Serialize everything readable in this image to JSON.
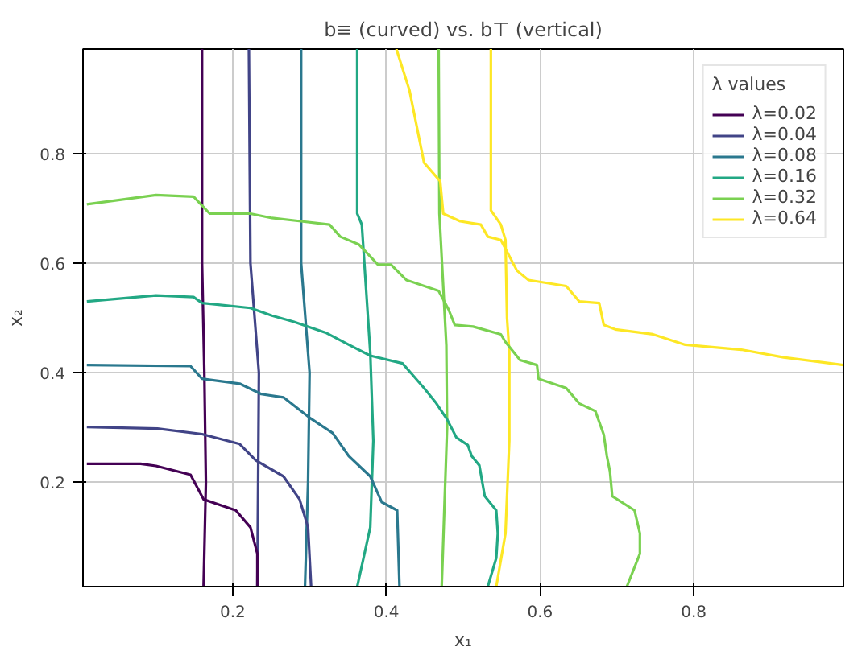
{
  "chart_data": {
    "type": "line",
    "title": "b≡ (curved) vs. b⊤ (vertical)",
    "xlabel": "x₁",
    "ylabel": "x₂",
    "legend_title": "λ values",
    "xlim": [
      0.005,
      0.995
    ],
    "ylim": [
      0.01,
      0.99
    ],
    "xticks": [
      0.2,
      0.4,
      0.6,
      0.8
    ],
    "yticks": [
      0.2,
      0.4,
      0.6,
      0.8
    ],
    "grid": true,
    "legend": "top right",
    "series": [
      {
        "name": "λ=0.02",
        "color": "#440154",
        "x": [
          0.16,
          0.16,
          0.163,
          0.165,
          0.162
        ],
        "values": [
          0.99,
          0.6,
          0.4,
          0.2,
          0.01
        ]
      },
      {
        "name": "λ=0.04",
        "color": "#414487",
        "x": [
          0.221,
          0.223,
          0.234,
          0.233,
          0.232
        ],
        "values": [
          0.99,
          0.6,
          0.4,
          0.2,
          0.01
        ]
      },
      {
        "name": "λ=0.08",
        "color": "#2a788e",
        "x": [
          0.289,
          0.289,
          0.3,
          0.298,
          0.294
        ],
        "values": [
          0.99,
          0.6,
          0.4,
          0.2,
          0.01
        ]
      },
      {
        "name": "λ=0.16",
        "color": "#22a884",
        "x": [
          0.362,
          0.362,
          0.368,
          0.379,
          0.383,
          0.379,
          0.362
        ],
        "values": [
          0.99,
          0.69,
          0.67,
          0.437,
          0.276,
          0.118,
          0.01
        ]
      },
      {
        "name": "λ=0.32",
        "color": "#7ad151",
        "x": [
          0.468,
          0.469,
          0.478,
          0.479,
          0.472
        ],
        "values": [
          0.99,
          0.69,
          0.45,
          0.3,
          0.01
        ]
      },
      {
        "name": "λ=0.64",
        "color": "#fde725",
        "x": [
          0.536,
          0.536,
          0.549,
          0.555,
          0.557,
          0.56,
          0.56,
          0.555,
          0.543
        ],
        "values": [
          0.99,
          0.696,
          0.67,
          0.642,
          0.5,
          0.437,
          0.276,
          0.107,
          0.01
        ]
      },
      {
        "color": "#440154",
        "x": [
          0.01,
          0.08,
          0.1,
          0.145,
          0.162,
          0.204,
          0.223,
          0.232,
          0.232
        ],
        "values": [
          0.234,
          0.234,
          0.23,
          0.214,
          0.169,
          0.149,
          0.118,
          0.07,
          0.01
        ]
      },
      {
        "color": "#414487",
        "x": [
          0.01,
          0.102,
          0.16,
          0.209,
          0.23,
          0.266,
          0.287,
          0.298,
          0.302
        ],
        "values": [
          0.301,
          0.298,
          0.288,
          0.27,
          0.24,
          0.211,
          0.169,
          0.118,
          0.01
        ]
      },
      {
        "color": "#2a788e",
        "x": [
          0.01,
          0.145,
          0.16,
          0.209,
          0.237,
          0.266,
          0.3,
          0.33,
          0.351,
          0.379,
          0.394,
          0.414,
          0.417
        ],
        "values": [
          0.414,
          0.412,
          0.389,
          0.38,
          0.361,
          0.355,
          0.318,
          0.29,
          0.248,
          0.211,
          0.164,
          0.149,
          0.01
        ]
      },
      {
        "color": "#22a884",
        "x": [
          0.01,
          0.1,
          0.149,
          0.16,
          0.223,
          0.251,
          0.279,
          0.321,
          0.351,
          0.379,
          0.421,
          0.449,
          0.464,
          0.479,
          0.491,
          0.506,
          0.511,
          0.521,
          0.528,
          0.543,
          0.545,
          0.543,
          0.532
        ],
        "values": [
          0.53,
          0.541,
          0.538,
          0.527,
          0.518,
          0.504,
          0.493,
          0.473,
          0.451,
          0.431,
          0.417,
          0.372,
          0.346,
          0.315,
          0.282,
          0.268,
          0.248,
          0.231,
          0.175,
          0.149,
          0.107,
          0.062,
          0.01
        ]
      },
      {
        "color": "#7ad151",
        "x": [
          0.01,
          0.1,
          0.149,
          0.17,
          0.223,
          0.251,
          0.289,
          0.326,
          0.34,
          0.364,
          0.389,
          0.406,
          0.426,
          0.468,
          0.481,
          0.489,
          0.513,
          0.549,
          0.555,
          0.574,
          0.596,
          0.598,
          0.634,
          0.651,
          0.672,
          0.683,
          0.687,
          0.691,
          0.694,
          0.723,
          0.73,
          0.73,
          0.713
        ],
        "values": [
          0.707,
          0.724,
          0.721,
          0.69,
          0.69,
          0.682,
          0.676,
          0.67,
          0.648,
          0.634,
          0.597,
          0.597,
          0.569,
          0.549,
          0.515,
          0.487,
          0.484,
          0.47,
          0.456,
          0.423,
          0.414,
          0.389,
          0.372,
          0.344,
          0.33,
          0.287,
          0.248,
          0.22,
          0.175,
          0.149,
          0.107,
          0.07,
          0.01
        ]
      },
      {
        "color": "#fde725",
        "x": [
          0.413,
          0.43,
          0.449,
          0.47,
          0.474,
          0.496,
          0.523,
          0.532,
          0.549,
          0.57,
          0.585,
          0.634,
          0.651,
          0.677,
          0.683,
          0.698,
          0.747,
          0.789,
          0.862,
          0.917,
          0.995
        ],
        "values": [
          0.99,
          0.915,
          0.783,
          0.749,
          0.69,
          0.676,
          0.67,
          0.648,
          0.642,
          0.586,
          0.569,
          0.558,
          0.53,
          0.527,
          0.487,
          0.479,
          0.47,
          0.451,
          0.442,
          0.428,
          0.414
        ]
      }
    ]
  }
}
